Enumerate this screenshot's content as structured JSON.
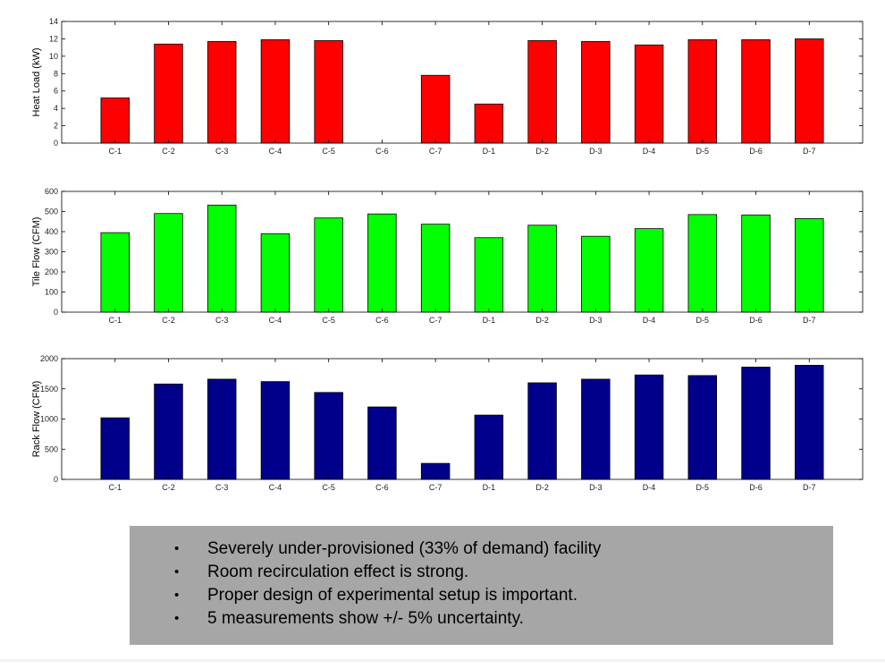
{
  "colors": {
    "heat_load": "#ff0000",
    "tile_flow": "#00ff00",
    "rack_flow": "#00008b",
    "note_background": "#a6a6a6"
  },
  "chart_data": [
    {
      "type": "bar",
      "title": "",
      "xlabel": "",
      "ylabel": "Heat Load (kW)",
      "categories": [
        "C-1",
        "C-2",
        "C-3",
        "C-4",
        "C-5",
        "C-6",
        "C-7",
        "D-1",
        "D-2",
        "D-3",
        "D-4",
        "D-5",
        "D-6",
        "D-7"
      ],
      "values": [
        5.2,
        11.4,
        11.7,
        11.9,
        11.8,
        0,
        7.8,
        4.5,
        11.8,
        11.7,
        11.3,
        11.9,
        11.9,
        12.0
      ],
      "ylim": [
        0,
        14
      ],
      "yticks": [
        0,
        2,
        4,
        6,
        8,
        10,
        12,
        14
      ],
      "grid": false,
      "bar_color": "#ff0000"
    },
    {
      "type": "bar",
      "title": "",
      "xlabel": "",
      "ylabel": "Tile Flow (CFM)",
      "categories": [
        "C-1",
        "C-2",
        "C-3",
        "C-4",
        "C-5",
        "C-6",
        "C-7",
        "D-1",
        "D-2",
        "D-3",
        "D-4",
        "D-5",
        "D-6",
        "D-7"
      ],
      "values": [
        395,
        490,
        532,
        390,
        468,
        488,
        437,
        370,
        432,
        377,
        415,
        485,
        483,
        465
      ],
      "ylim": [
        0,
        600
      ],
      "yticks": [
        0,
        100,
        200,
        300,
        400,
        500,
        600
      ],
      "grid": false,
      "bar_color": "#00ff00"
    },
    {
      "type": "bar",
      "title": "",
      "xlabel": "",
      "ylabel": "Rack Flow (CFM)",
      "categories": [
        "C-1",
        "C-2",
        "C-3",
        "C-4",
        "C-5",
        "C-6",
        "C-7",
        "D-1",
        "D-2",
        "D-3",
        "D-4",
        "D-5",
        "D-6",
        "D-7"
      ],
      "values": [
        1020,
        1580,
        1660,
        1620,
        1440,
        1200,
        265,
        1065,
        1600,
        1660,
        1730,
        1720,
        1860,
        1890
      ],
      "ylim": [
        0,
        2000
      ],
      "yticks": [
        0,
        500,
        1000,
        1500,
        2000
      ],
      "grid": false,
      "bar_color": "#00008b"
    }
  ],
  "notes": {
    "bullet": "•",
    "items": [
      "Severely under-provisioned (33% of demand) facility",
      "Room recirculation effect is strong.",
      "Proper design of experimental setup is important.",
      "5 measurements show +/- 5% uncertainty."
    ]
  }
}
